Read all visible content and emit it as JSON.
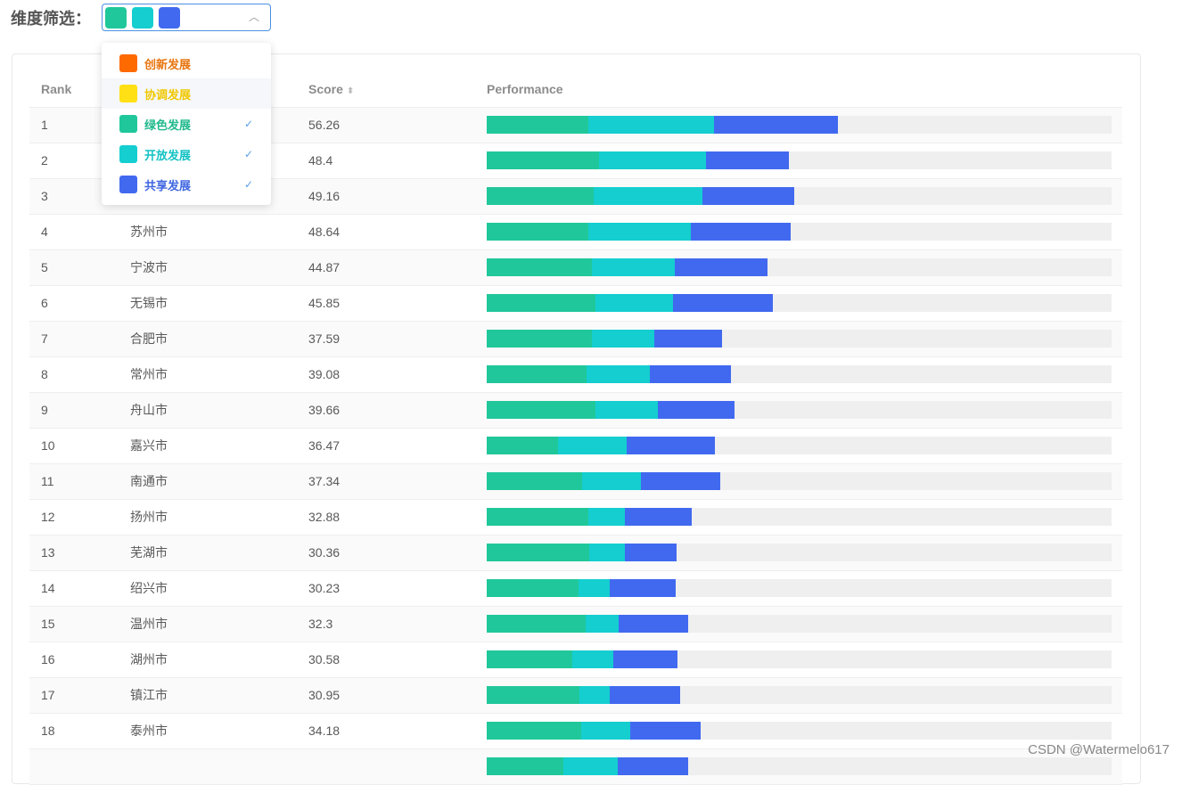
{
  "filter": {
    "label": "维度筛选：",
    "chevron": "chevron-up-icon"
  },
  "colors": {
    "innovation": "#ff6a00",
    "coordination": "#ffe014",
    "green": "#20c79a",
    "open": "#14ced0",
    "shared": "#4169ef"
  },
  "dropdown": [
    {
      "label": "创新发展",
      "color": "#ff6a00",
      "text": "#e8750f",
      "checked": false
    },
    {
      "label": "协调发展",
      "color": "#ffe014",
      "text": "#f0c800",
      "checked": false
    },
    {
      "label": "绿色发展",
      "color": "#20c79a",
      "text": "#20b98c",
      "checked": true
    },
    {
      "label": "开放发展",
      "color": "#14ced0",
      "text": "#14c2c4",
      "checked": true
    },
    {
      "label": "共享发展",
      "color": "#4169ef",
      "text": "#3f66e0",
      "checked": true
    }
  ],
  "table": {
    "headers": [
      "Rank",
      "",
      "Score",
      "Performance"
    ],
    "rows": [
      {
        "rank": "1",
        "city": "",
        "score": "56.26",
        "v": [
          16.3,
          20.1,
          19.8
        ]
      },
      {
        "rank": "2",
        "city": "",
        "score": "48.4",
        "v": [
          18.0,
          17.1,
          13.3
        ]
      },
      {
        "rank": "3",
        "city": "",
        "score": "49.16",
        "v": [
          17.1,
          17.4,
          14.7
        ]
      },
      {
        "rank": "4",
        "city": "苏州市",
        "score": "48.64",
        "v": [
          16.3,
          16.4,
          16.0
        ]
      },
      {
        "rank": "5",
        "city": "宁波市",
        "score": "44.87",
        "v": [
          16.8,
          13.3,
          14.8
        ]
      },
      {
        "rank": "6",
        "city": "无锡市",
        "score": "45.85",
        "v": [
          17.4,
          12.4,
          16.0
        ]
      },
      {
        "rank": "7",
        "city": "合肥市",
        "score": "37.59",
        "v": [
          16.8,
          10.0,
          10.8
        ]
      },
      {
        "rank": "8",
        "city": "常州市",
        "score": "39.08",
        "v": [
          16.0,
          10.1,
          13.0
        ]
      },
      {
        "rank": "9",
        "city": "舟山市",
        "score": "39.66",
        "v": [
          17.4,
          10.0,
          12.3
        ]
      },
      {
        "rank": "10",
        "city": "嘉兴市",
        "score": "36.47",
        "v": [
          11.4,
          11.0,
          14.1
        ]
      },
      {
        "rank": "11",
        "city": "南通市",
        "score": "37.34",
        "v": [
          15.3,
          9.4,
          12.7
        ]
      },
      {
        "rank": "12",
        "city": "扬州市",
        "score": "32.88",
        "v": [
          16.3,
          5.8,
          10.7
        ]
      },
      {
        "rank": "13",
        "city": "芜湖市",
        "score": "30.36",
        "v": [
          16.4,
          5.7,
          8.3
        ]
      },
      {
        "rank": "14",
        "city": "绍兴市",
        "score": "30.23",
        "v": [
          14.7,
          5.0,
          10.6
        ]
      },
      {
        "rank": "15",
        "city": "温州市",
        "score": "32.3",
        "v": [
          15.8,
          5.3,
          11.1
        ]
      },
      {
        "rank": "16",
        "city": "湖州市",
        "score": "30.58",
        "v": [
          13.7,
          6.6,
          10.3
        ]
      },
      {
        "rank": "17",
        "city": "镇江市",
        "score": "30.95",
        "v": [
          14.8,
          4.9,
          11.3
        ]
      },
      {
        "rank": "18",
        "city": "泰州市",
        "score": "34.18",
        "v": [
          15.1,
          7.8,
          11.3
        ]
      },
      {
        "rank": "",
        "city": "",
        "score": "",
        "v": [
          12.3,
          8.6,
          11.3
        ]
      }
    ]
  },
  "watermark": "CSDN @Watermelo617"
}
